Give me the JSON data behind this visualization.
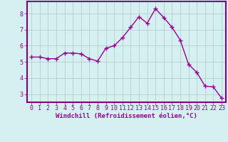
{
  "x": [
    0,
    1,
    2,
    3,
    4,
    5,
    6,
    7,
    8,
    9,
    10,
    11,
    12,
    13,
    14,
    15,
    16,
    17,
    18,
    19,
    20,
    21,
    22,
    23
  ],
  "y": [
    5.3,
    5.3,
    5.2,
    5.2,
    5.55,
    5.55,
    5.5,
    5.2,
    5.05,
    5.85,
    6.0,
    6.5,
    7.15,
    7.8,
    7.4,
    8.3,
    7.75,
    7.15,
    6.35,
    4.85,
    4.35,
    3.5,
    3.45,
    2.75
  ],
  "line_color": "#990099",
  "marker": "+",
  "marker_size": 4,
  "xlabel": "Windchill (Refroidissement éolien,°C)",
  "xlabel_fontsize": 6.5,
  "ylabel_ticks": [
    3,
    4,
    5,
    6,
    7,
    8
  ],
  "xlim": [
    -0.5,
    23.5
  ],
  "ylim": [
    2.5,
    8.75
  ],
  "bg_color": "#d4f0f0",
  "bottom_bar_color": "#800080",
  "grid_color": "#b0c8c8",
  "tick_fontsize": 6.0,
  "line_width": 1.0,
  "marker_edge_width": 1.0
}
